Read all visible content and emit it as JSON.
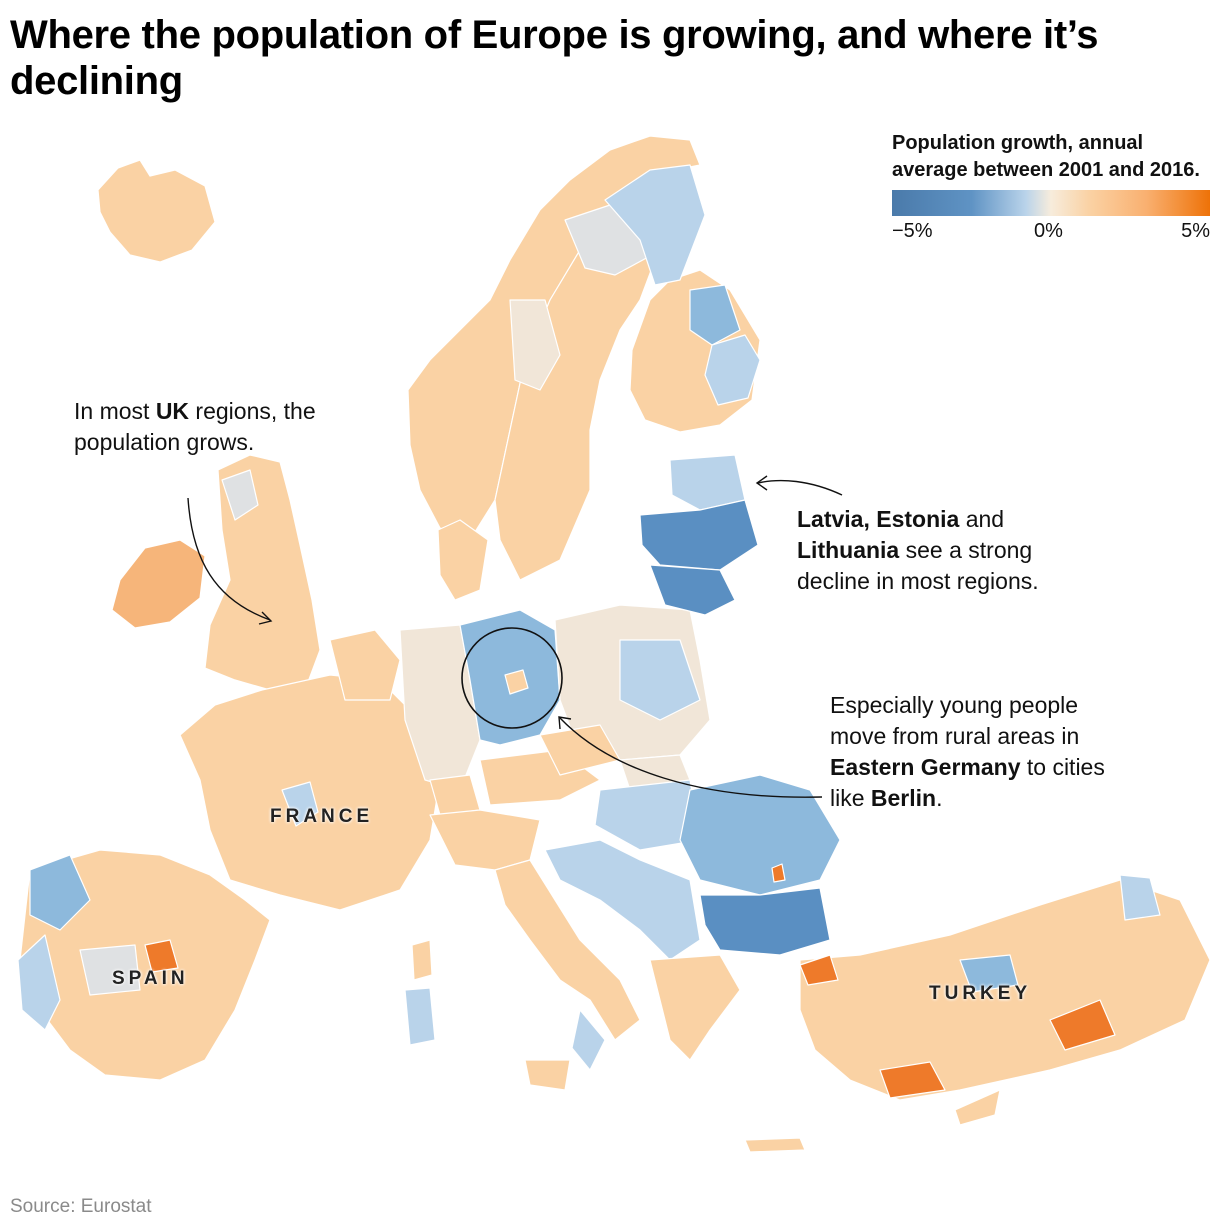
{
  "title": "Where the population of Europe is growing, and where it’s declining",
  "legend": {
    "title": "Population growth, annual average between 2001 and 2016.",
    "min_label": "−5%",
    "mid_label": "0%",
    "max_label": "5%",
    "scale_colors": [
      "#4a7aaa",
      "#b9d3ea",
      "#f7ecdc",
      "#fad2a4",
      "#ee7208"
    ]
  },
  "annotations": {
    "uk": {
      "pre": "In most ",
      "bold": "UK",
      "post": " regions, the population grows."
    },
    "baltics": {
      "bold1": "Latvia, Estonia",
      "mid": " and ",
      "bold2": "Lithuania",
      "post": " see a strong decline in most regions."
    },
    "germany": {
      "pre": "Especially young people move from rural areas in ",
      "bold1": "Eastern Germany",
      "mid": " to cities like ",
      "bold2": "Berlin",
      "post": "."
    }
  },
  "country_labels": {
    "france": "FRANCE",
    "spain": "SPAIN",
    "turkey": "TURKEY"
  },
  "source": "Source: Eurostat",
  "colors": {
    "growth_light": "#fad2a4",
    "growth_mid": "#f6b57a",
    "growth_strong": "#ee7a2a",
    "neutral": "#f1e6d8",
    "no_data": "#dfe1e3",
    "decline_light": "#b9d3ea",
    "decline_mid": "#8db9dc",
    "decline_strong": "#5a8fc2"
  }
}
